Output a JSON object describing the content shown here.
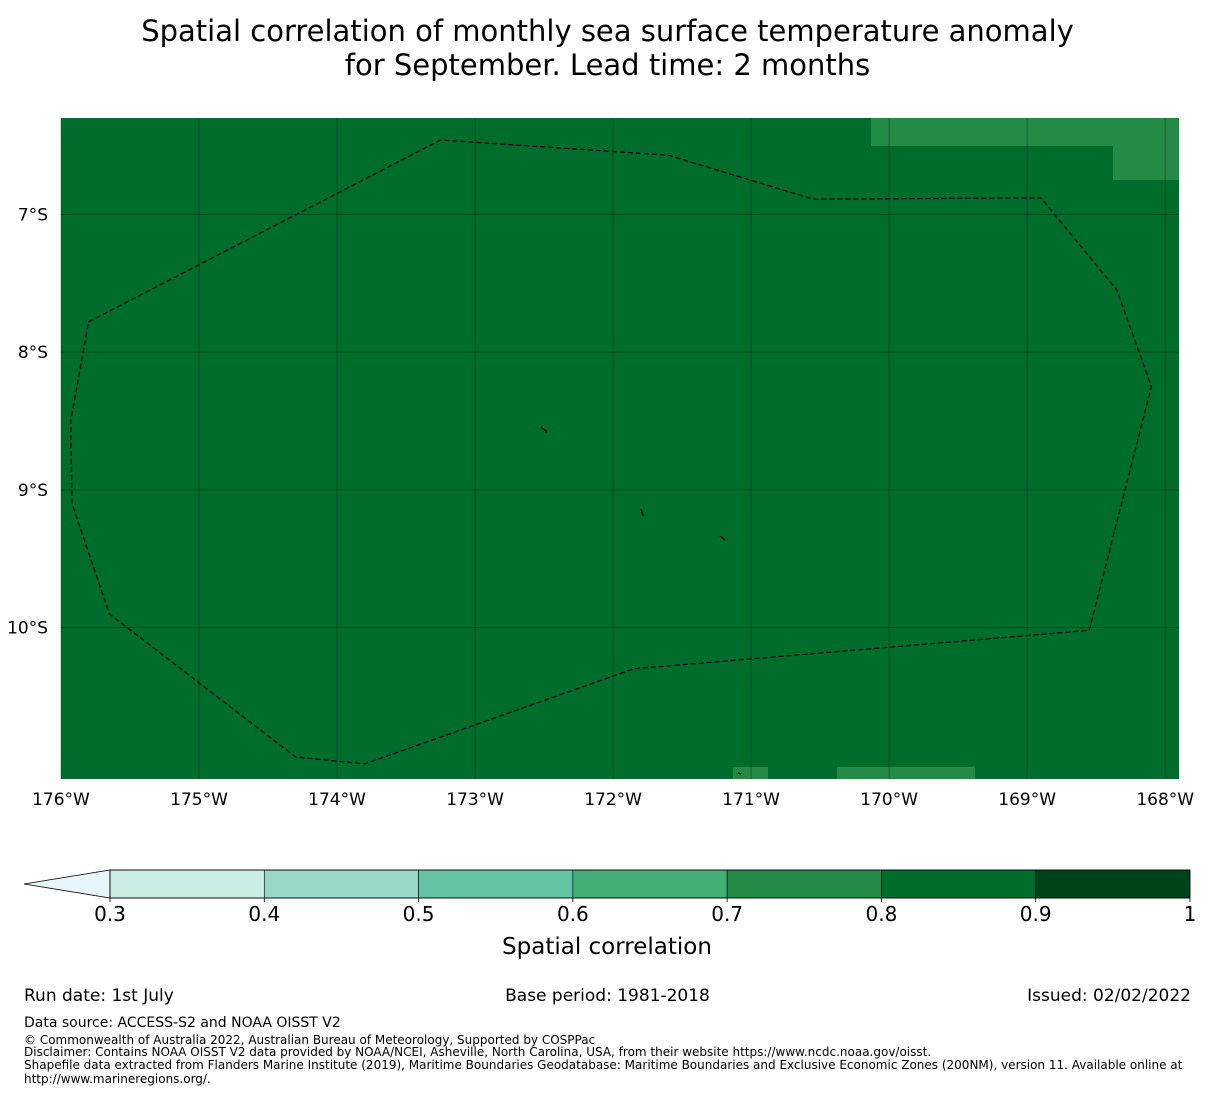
{
  "title": {
    "line1": "Spatial correlation of monthly sea surface temperature anomaly",
    "line2": "for September. Lead time: 2 months"
  },
  "map": {
    "lon_range": [
      -176.0,
      -167.9
    ],
    "lat_range": [
      -11.1,
      -6.3
    ],
    "background_value": "0.8-0.9",
    "latitude_labels": [
      {
        "value": -7,
        "label": "7°S"
      },
      {
        "value": -8,
        "label": "8°S"
      },
      {
        "value": -9,
        "label": "9°S"
      },
      {
        "value": -10,
        "label": "10°S"
      }
    ],
    "longitude_labels": [
      {
        "value": -176,
        "label": "176°W"
      },
      {
        "value": -175,
        "label": "175°W"
      },
      {
        "value": -174,
        "label": "174°W"
      },
      {
        "value": -173,
        "label": "173°W"
      },
      {
        "value": -172,
        "label": "172°W"
      },
      {
        "value": -171,
        "label": "171°W"
      },
      {
        "value": -170,
        "label": "170°W"
      },
      {
        "value": -169,
        "label": "169°W"
      },
      {
        "value": -168,
        "label": "168°W"
      }
    ],
    "eez_boundary": [
      [
        -175.8,
        -7.78
      ],
      [
        -173.25,
        -6.46
      ],
      [
        -171.6,
        -6.57
      ],
      [
        -170.55,
        -6.89
      ],
      [
        -168.9,
        -6.88
      ],
      [
        -168.35,
        -7.55
      ],
      [
        -168.1,
        -8.25
      ],
      [
        -168.55,
        -10.02
      ],
      [
        -171.85,
        -10.3
      ],
      [
        -173.8,
        -10.99
      ],
      [
        -174.3,
        -10.94
      ],
      [
        -175.65,
        -9.9
      ],
      [
        -175.92,
        -9.1
      ],
      [
        -175.93,
        -8.5
      ],
      [
        -175.8,
        -7.78
      ]
    ]
  },
  "colorbar": {
    "label": "Spatial correlation",
    "extend": "min",
    "ticks": [
      "0.3",
      "0.4",
      "0.5",
      "0.6",
      "0.7",
      "0.8",
      "0.9",
      "1"
    ],
    "colors": [
      "#e5f5f9",
      "#ccece6",
      "#99d8c9",
      "#66c2a4",
      "#41ae76",
      "#238b45",
      "#006d2c",
      "#00441b"
    ]
  },
  "footer": {
    "run_date": "Run date: 1st July",
    "base_period": "Base period: 1981-2018",
    "issued": "Issued: 02/02/2022",
    "data_source": "Data source: ACCESS-S2 and NOAA OISST V2",
    "copyright": "© Commonwealth of Australia 2022, Australian Bureau of Meteorology, Supported by COSPPac",
    "disclaimer": "Disclaimer: Contains NOAA OISST V2 data provided by NOAA/NCEI, Asheville, North Carolina, USA, from their website https://www.ncdc.noaa.gov/oisst.",
    "shapefile_line1": "Shapefile data extracted from Flanders Marine Institute (2019), Maritime Boundaries Geodatabase: Maritime Boundaries and Exclusive Economic Zones (200NM), version 11. Available online at",
    "shapefile_line2": "http://www.marineregions.org/."
  }
}
